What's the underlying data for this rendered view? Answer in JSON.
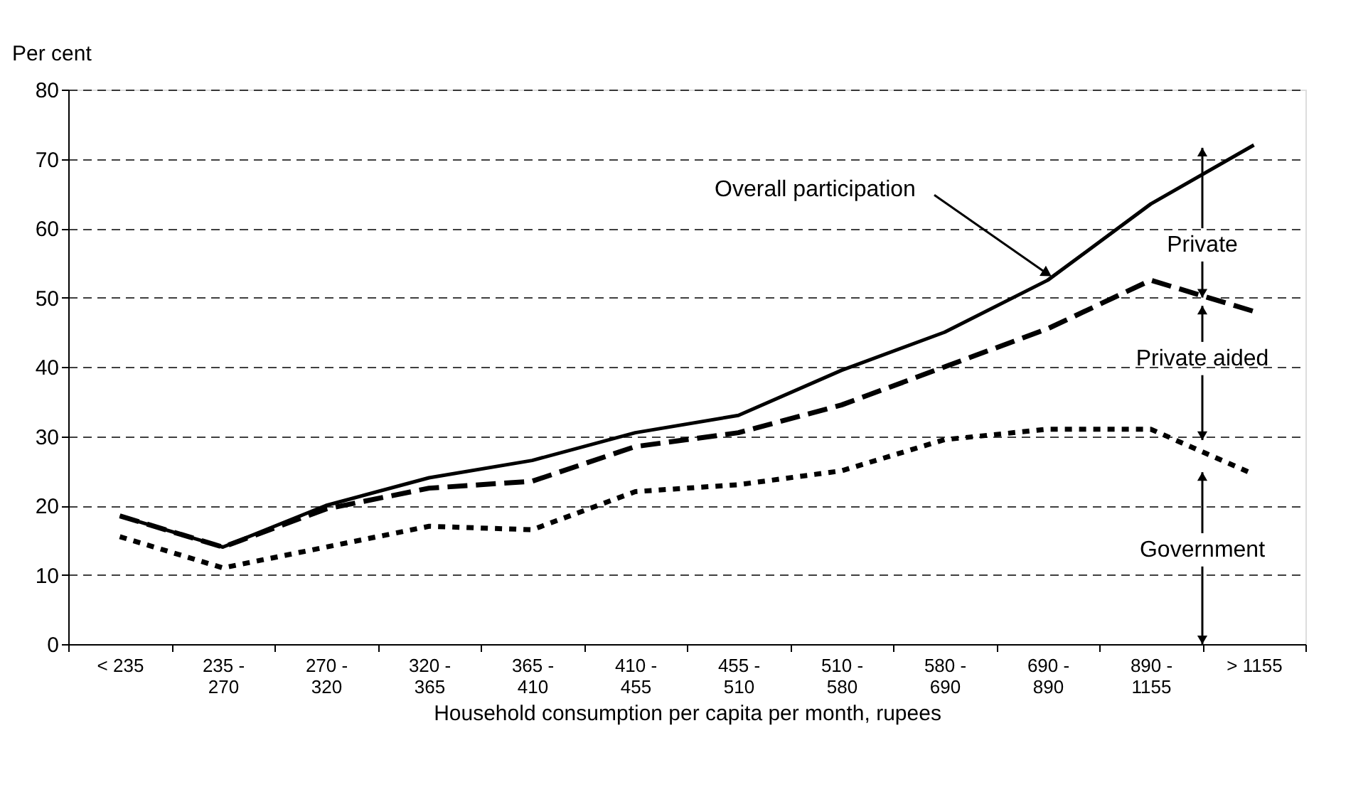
{
  "chart_data": {
    "type": "line",
    "ylabel": "Per cent",
    "xlabel": "Household consumption per capita per month, rupees",
    "categories": [
      "< 235",
      "235 - 270",
      "270 - 320",
      "320 - 365",
      "365 - 410",
      "410 - 455",
      "455 - 510",
      "510 - 580",
      "580 - 690",
      "690 - 890",
      "890 - 1155",
      "> 1155"
    ],
    "series": [
      {
        "name": "Overall participation",
        "color": "#000000",
        "line_style": "solid",
        "values": [
          18.5,
          14,
          20,
          24,
          26.5,
          30.5,
          33,
          39.5,
          45,
          52.5,
          63.5,
          72
        ]
      },
      {
        "color": "#000000",
        "line_style": "dashed",
        "values": [
          18.5,
          14,
          19.5,
          22.5,
          23.5,
          28.5,
          30.5,
          34.5,
          40,
          45.5,
          52.5,
          48
        ]
      },
      {
        "color": "#000000",
        "line_style": "dotted",
        "values": [
          15.5,
          11,
          14,
          17,
          16.5,
          22,
          23,
          25,
          29.5,
          31,
          31,
          24.5
        ]
      }
    ],
    "ylim": [
      0,
      80
    ],
    "yticks": [
      0,
      10,
      20,
      30,
      40,
      50,
      60,
      70,
      80
    ],
    "grid": "y",
    "annotations": [
      {
        "text": "Private",
        "y": 50
      },
      "Private aided",
      "Government"
    ]
  }
}
